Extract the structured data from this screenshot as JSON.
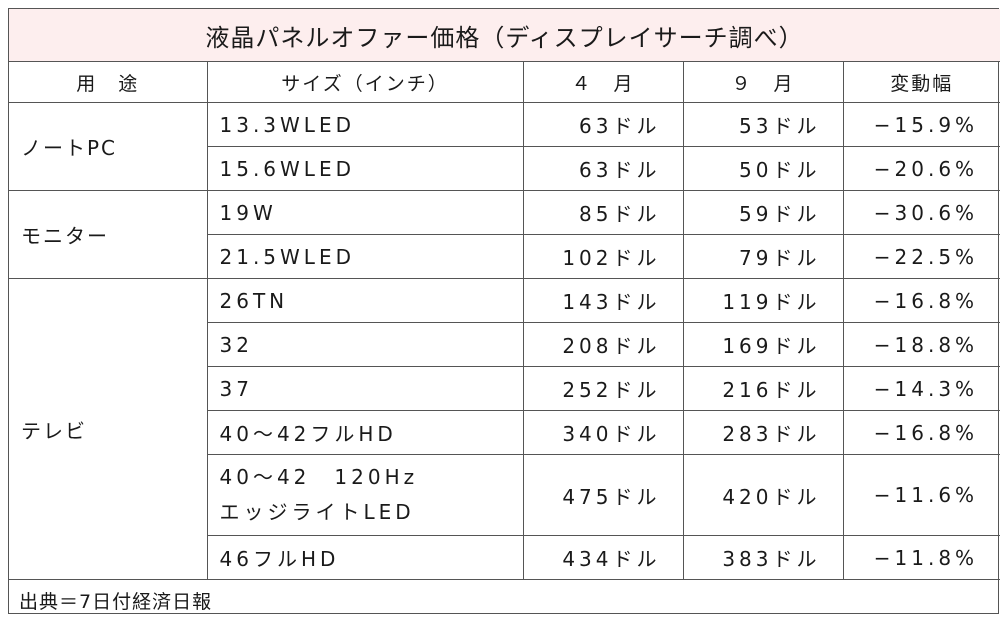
{
  "title": "液晶パネルオファー価格（ディスプレイサーチ調べ）",
  "headers": {
    "use": "用　途",
    "size": "サイズ（インチ）",
    "april": "４　月",
    "september": "９　月",
    "change": "変動幅"
  },
  "categories": {
    "notebook": "ノートPC",
    "monitor": "モニター",
    "tv": "テレビ"
  },
  "rows": [
    {
      "size": "13.3WLED",
      "apr": "63ドル",
      "sep": "53ドル",
      "chg": "−15.9%"
    },
    {
      "size": "15.6WLED",
      "apr": "63ドル",
      "sep": "50ドル",
      "chg": "−20.6%"
    },
    {
      "size": "19W",
      "apr": "85ドル",
      "sep": "59ドル",
      "chg": "−30.6%"
    },
    {
      "size": "21.5WLED",
      "apr": "102ドル",
      "sep": "79ドル",
      "chg": "−22.5%"
    },
    {
      "size": "26TN",
      "apr": "143ドル",
      "sep": "119ドル",
      "chg": "−16.8%"
    },
    {
      "size": "32",
      "apr": "208ドル",
      "sep": "169ドル",
      "chg": "−18.8%"
    },
    {
      "size": "37",
      "apr": "252ドル",
      "sep": "216ドル",
      "chg": "−14.3%"
    },
    {
      "size": "40〜42フルHD",
      "apr": "340ドル",
      "sep": "283ドル",
      "chg": "−16.8%"
    },
    {
      "size_line1": "40〜42　120Hz",
      "size_line2": "エッジライトLED",
      "apr": "475ドル",
      "sep": "420ドル",
      "chg": "−11.6%"
    },
    {
      "size": "46フルHD",
      "apr": "434ドル",
      "sep": "383ドル",
      "chg": "−11.8%"
    }
  ],
  "source": "出典＝7日付経済日報"
}
